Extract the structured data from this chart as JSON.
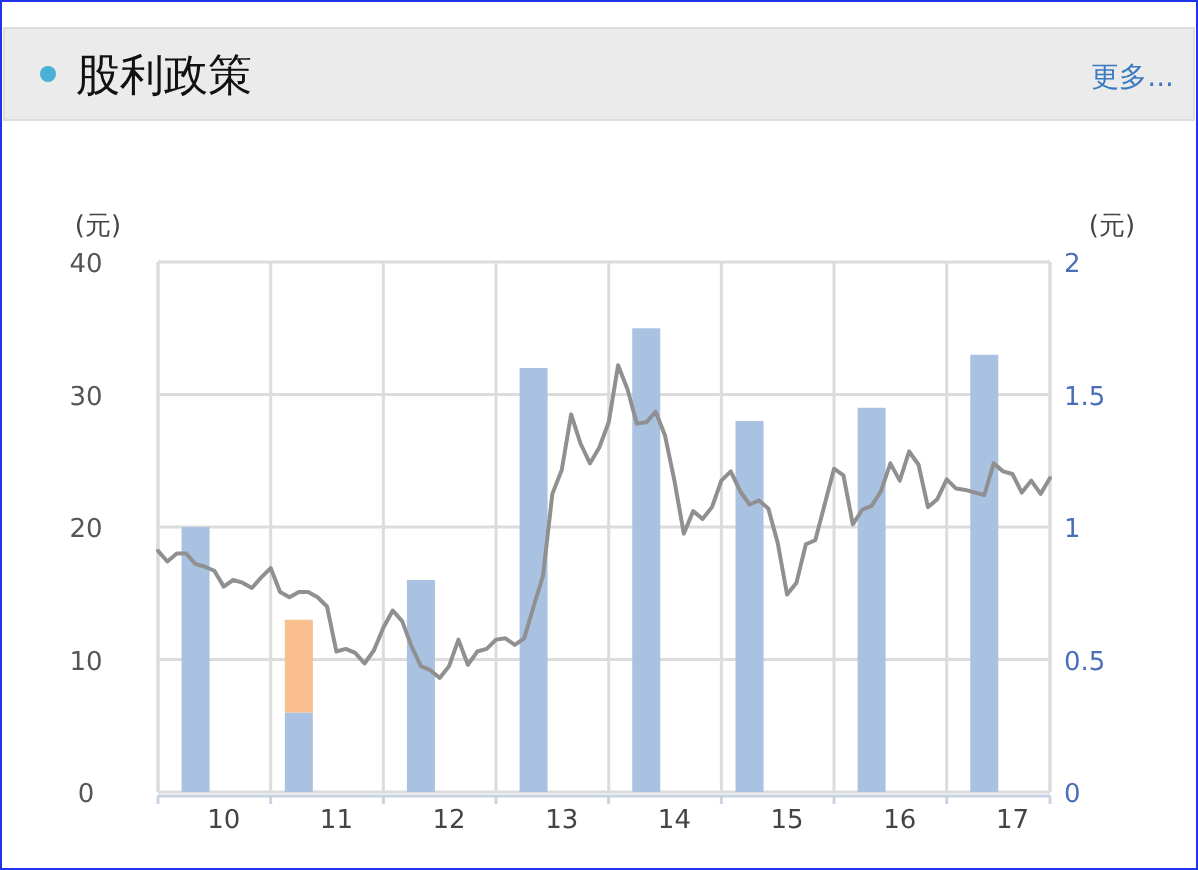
{
  "chart_data": {
    "type": "bar",
    "title": "股利政策",
    "annotations": [
      "更多..."
    ],
    "ylabel": "(元)",
    "y2label": "(元)",
    "xlim": [
      "2010-01",
      "2017-12"
    ],
    "xticks": [
      {
        "value": "2010-01",
        "label": null
      },
      {
        "value": "2010-08",
        "label": "10"
      },
      {
        "value": "2011-01",
        "label": null
      },
      {
        "value": "2011-08",
        "label": "11"
      },
      {
        "value": "2012-01",
        "label": null
      },
      {
        "value": "2012-08",
        "label": "12"
      },
      {
        "value": "2013-01",
        "label": null
      },
      {
        "value": "2013-08",
        "label": "13"
      },
      {
        "value": "2014-01",
        "label": null
      },
      {
        "value": "2014-08",
        "label": "14"
      },
      {
        "value": "2015-01",
        "label": null
      },
      {
        "value": "2015-08",
        "label": "15"
      },
      {
        "value": "2016-01",
        "label": null
      },
      {
        "value": "2016-08",
        "label": "16"
      },
      {
        "value": "2017-01",
        "label": null
      },
      {
        "value": "2017-08",
        "label": "17"
      },
      {
        "value": "2017-12",
        "label": null
      }
    ],
    "ylim": [
      0,
      40
    ],
    "yticks": [
      0,
      10,
      20,
      30,
      40
    ],
    "y2lim": [
      0,
      2
    ],
    "y2ticks": [
      0,
      0.5,
      1,
      1.5,
      2
    ],
    "grid": true,
    "stacked": true,
    "x": [
      "2010-05",
      "2011-04",
      "2012-05",
      "2013-05",
      "2014-05",
      "2015-04",
      "2016-05",
      "2017-05"
    ],
    "series": [
      {
        "axis": "y2",
        "color": "#a9c2e2",
        "values": [
          1.0,
          0.3,
          0.8,
          1.6,
          1.75,
          1.4,
          1.45,
          1.65
        ]
      },
      {
        "axis": "y2",
        "color": "#f9bf8f",
        "values": [
          null,
          0.35,
          null,
          null,
          null,
          null,
          null,
          null
        ]
      },
      {
        "type": "line",
        "axis": "y",
        "color": "#909090",
        "marker": "none",
        "line_style": "solid",
        "x": [
          "2010-01",
          "2010-02",
          "2010-03",
          "2010-04",
          "2010-05",
          "2010-06",
          "2010-07",
          "2010-08",
          "2010-09",
          "2010-10",
          "2010-11",
          "2010-12",
          "2011-01",
          "2011-02",
          "2011-03",
          "2011-04",
          "2011-05",
          "2011-06",
          "2011-07",
          "2011-08",
          "2011-09",
          "2011-10",
          "2011-11",
          "2011-12",
          "2012-01",
          "2012-02",
          "2012-03",
          "2012-04",
          "2012-05",
          "2012-06",
          "2012-07",
          "2012-08",
          "2012-09",
          "2012-10",
          "2012-11",
          "2012-12",
          "2013-01",
          "2013-02",
          "2013-03",
          "2013-04",
          "2013-05",
          "2013-06",
          "2013-07",
          "2013-08",
          "2013-09",
          "2013-10",
          "2013-11",
          "2013-12",
          "2014-01",
          "2014-02",
          "2014-03",
          "2014-04",
          "2014-05",
          "2014-06",
          "2014-07",
          "2014-08",
          "2014-09",
          "2014-10",
          "2014-11",
          "2014-12",
          "2015-01",
          "2015-02",
          "2015-03",
          "2015-04",
          "2015-05",
          "2015-06",
          "2015-07",
          "2015-08",
          "2015-09",
          "2015-10",
          "2015-11",
          "2015-12",
          "2016-01",
          "2016-02",
          "2016-03",
          "2016-04",
          "2016-05",
          "2016-06",
          "2016-07",
          "2016-08",
          "2016-09",
          "2016-10",
          "2016-11",
          "2016-12",
          "2017-01",
          "2017-02",
          "2017-03",
          "2017-04",
          "2017-05",
          "2017-06",
          "2017-07",
          "2017-08",
          "2017-09",
          "2017-10",
          "2017-11",
          "2017-12"
        ],
        "values": [
          18.2,
          17.4,
          18.0,
          18.0,
          17.2,
          17.0,
          16.7,
          15.5,
          16.0,
          15.8,
          15.4,
          16.2,
          16.9,
          15.1,
          14.7,
          15.1,
          15.1,
          14.7,
          14.0,
          10.6,
          10.8,
          10.5,
          9.7,
          10.7,
          12.4,
          13.7,
          12.9,
          11.0,
          9.5,
          9.2,
          8.6,
          9.5,
          11.5,
          9.6,
          10.6,
          10.8,
          11.5,
          11.6,
          11.1,
          11.6,
          14.0,
          16.3,
          22.5,
          24.3,
          28.5,
          26.3,
          24.8,
          26.0,
          27.9,
          32.2,
          30.4,
          27.8,
          27.9,
          28.7,
          26.9,
          23.5,
          19.5,
          21.2,
          20.6,
          21.5,
          23.5,
          24.2,
          22.7,
          21.7,
          22.0,
          21.4,
          18.8,
          14.9,
          15.8,
          18.7,
          19.0,
          21.7,
          24.4,
          23.9,
          20.2,
          21.3,
          21.6,
          22.7,
          24.8,
          23.5,
          25.7,
          24.7,
          21.5,
          22.1,
          23.6,
          22.9,
          22.8,
          22.6,
          22.4,
          24.8,
          24.2,
          24.0,
          22.6,
          23.5,
          22.5,
          23.7
        ]
      }
    ]
  }
}
